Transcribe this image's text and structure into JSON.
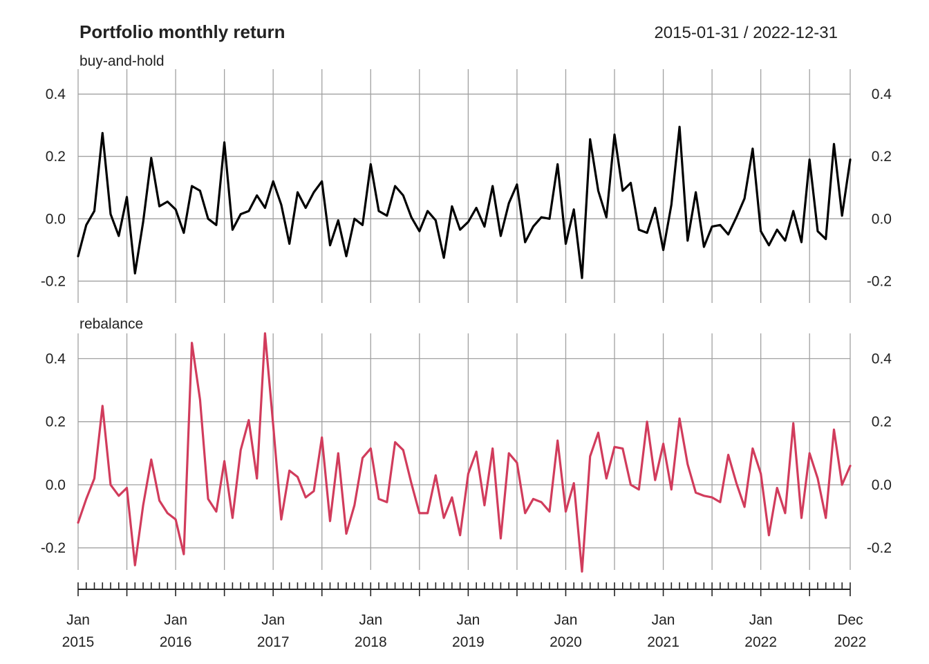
{
  "chart_data": {
    "type": "line",
    "title": "Portfolio monthly return",
    "date_range": "2015-01-31 / 2022-12-31",
    "xlabel": "",
    "ylabel": "",
    "grid": true,
    "legend": "none",
    "x": [
      "2015-01",
      "2015-02",
      "2015-03",
      "2015-04",
      "2015-05",
      "2015-06",
      "2015-07",
      "2015-08",
      "2015-09",
      "2015-10",
      "2015-11",
      "2015-12",
      "2016-01",
      "2016-02",
      "2016-03",
      "2016-04",
      "2016-05",
      "2016-06",
      "2016-07",
      "2016-08",
      "2016-09",
      "2016-10",
      "2016-11",
      "2016-12",
      "2017-01",
      "2017-02",
      "2017-03",
      "2017-04",
      "2017-05",
      "2017-06",
      "2017-07",
      "2017-08",
      "2017-09",
      "2017-10",
      "2017-11",
      "2017-12",
      "2018-01",
      "2018-02",
      "2018-03",
      "2018-04",
      "2018-05",
      "2018-06",
      "2018-07",
      "2018-08",
      "2018-09",
      "2018-10",
      "2018-11",
      "2018-12",
      "2019-01",
      "2019-02",
      "2019-03",
      "2019-04",
      "2019-05",
      "2019-06",
      "2019-07",
      "2019-08",
      "2019-09",
      "2019-10",
      "2019-11",
      "2019-12",
      "2020-01",
      "2020-02",
      "2020-03",
      "2020-04",
      "2020-05",
      "2020-06",
      "2020-07",
      "2020-08",
      "2020-09",
      "2020-10",
      "2020-11",
      "2020-12",
      "2021-01",
      "2021-02",
      "2021-03",
      "2021-04",
      "2021-05",
      "2021-06",
      "2021-07",
      "2021-08",
      "2021-09",
      "2021-10",
      "2021-11",
      "2021-12",
      "2022-01",
      "2022-02",
      "2022-03",
      "2022-04",
      "2022-05",
      "2022-06",
      "2022-07",
      "2022-08",
      "2022-09",
      "2022-10",
      "2022-11",
      "2022-12"
    ],
    "x_ticks": [
      {
        "index": 0,
        "line1": "Jan",
        "line2": "2015"
      },
      {
        "index": 12,
        "line1": "Jan",
        "line2": "2016"
      },
      {
        "index": 24,
        "line1": "Jan",
        "line2": "2017"
      },
      {
        "index": 36,
        "line1": "Jan",
        "line2": "2018"
      },
      {
        "index": 48,
        "line1": "Jan",
        "line2": "2019"
      },
      {
        "index": 60,
        "line1": "Jan",
        "line2": "2020"
      },
      {
        "index": 72,
        "line1": "Jan",
        "line2": "2021"
      },
      {
        "index": 84,
        "line1": "Jan",
        "line2": "2022"
      },
      {
        "index": 95,
        "line1": "Dec",
        "line2": "2022"
      }
    ],
    "grid_x_index": [
      0,
      6,
      12,
      18,
      24,
      30,
      36,
      42,
      48,
      54,
      60,
      66,
      72,
      78,
      84,
      90,
      95
    ],
    "panels": [
      {
        "label": "buy-and-hold",
        "color": "#000000",
        "ylim": [
          -0.27,
          0.48
        ],
        "yticks": [
          -0.2,
          0.0,
          0.2,
          0.4
        ],
        "ytick_labels": [
          "-0.2",
          "0.0",
          "0.2",
          "0.4"
        ],
        "series": [
          {
            "values": [
              -0.12,
              -0.02,
              0.025,
              0.275,
              0.015,
              -0.055,
              0.07,
              -0.175,
              -0.01,
              0.195,
              0.04,
              0.055,
              0.03,
              -0.045,
              0.105,
              0.09,
              0.0,
              -0.02,
              0.245,
              -0.035,
              0.015,
              0.025,
              0.075,
              0.035,
              0.12,
              0.045,
              -0.08,
              0.085,
              0.035,
              0.085,
              0.12,
              -0.085,
              -0.005,
              -0.12,
              0.0,
              -0.02,
              0.175,
              0.025,
              0.01,
              0.105,
              0.075,
              0.005,
              -0.04,
              0.025,
              -0.005,
              -0.125,
              0.04,
              -0.035,
              -0.01,
              0.035,
              -0.025,
              0.105,
              -0.055,
              0.05,
              0.11,
              -0.075,
              -0.025,
              0.005,
              0.0,
              0.175,
              -0.08,
              0.03,
              -0.19,
              0.255,
              0.09,
              0.005,
              0.27,
              0.09,
              0.115,
              -0.035,
              -0.045,
              0.035,
              -0.1,
              0.045,
              0.295,
              -0.07,
              0.085,
              -0.09,
              -0.025,
              -0.02,
              -0.05,
              0.005,
              0.065,
              0.225,
              -0.04,
              -0.085,
              -0.035,
              -0.07,
              0.025,
              -0.075,
              0.19,
              -0.04,
              -0.065,
              0.24,
              0.01,
              0.19
            ]
          }
        ]
      },
      {
        "label": "rebalance",
        "color": "#d13c5c",
        "ylim": [
          -0.27,
          0.48
        ],
        "yticks": [
          -0.2,
          0.0,
          0.2,
          0.4
        ],
        "ytick_labels": [
          "-0.2",
          "0.0",
          "0.2",
          "0.4"
        ],
        "series": [
          {
            "values": [
              -0.12,
              -0.045,
              0.02,
              0.25,
              0.0,
              -0.035,
              -0.01,
              -0.255,
              -0.065,
              0.08,
              -0.05,
              -0.09,
              -0.11,
              -0.22,
              0.45,
              0.27,
              -0.045,
              -0.085,
              0.075,
              -0.105,
              0.11,
              0.205,
              0.02,
              0.48,
              0.19,
              -0.11,
              0.045,
              0.025,
              -0.04,
              -0.02,
              0.15,
              -0.115,
              0.1,
              -0.155,
              -0.065,
              0.085,
              0.115,
              -0.045,
              -0.055,
              0.135,
              0.11,
              0.005,
              -0.09,
              -0.09,
              0.03,
              -0.105,
              -0.04,
              -0.16,
              0.035,
              0.105,
              -0.065,
              0.115,
              -0.17,
              0.1,
              0.07,
              -0.09,
              -0.045,
              -0.055,
              -0.085,
              0.14,
              -0.085,
              0.005,
              -0.275,
              0.09,
              0.165,
              0.02,
              0.12,
              0.115,
              0.0,
              -0.015,
              0.2,
              0.015,
              0.13,
              -0.015,
              0.21,
              0.065,
              -0.025,
              -0.035,
              -0.04,
              -0.055,
              0.095,
              0.005,
              -0.07,
              0.115,
              0.035,
              -0.16,
              -0.01,
              -0.09,
              0.195,
              -0.105,
              0.1,
              0.02,
              -0.105,
              0.175,
              0.0,
              0.06
            ]
          }
        ]
      }
    ]
  }
}
